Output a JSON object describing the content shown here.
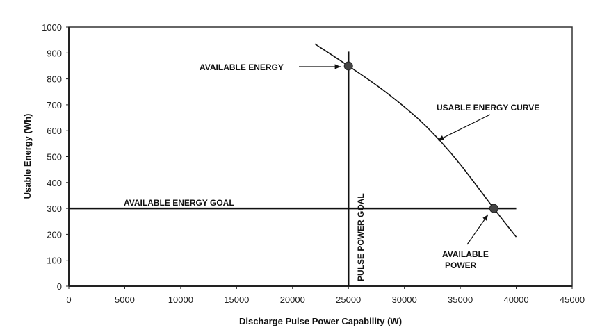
{
  "chart_data": {
    "type": "line",
    "title": "",
    "xlabel": "Discharge Pulse Power Capability (W)",
    "ylabel": "Usable Energy (Wh)",
    "xlim": [
      0,
      45000
    ],
    "ylim": [
      0,
      1000
    ],
    "x_ticks": [
      "0",
      "5000",
      "10000",
      "15000",
      "20000",
      "25000",
      "30000",
      "35000",
      "40000",
      "45000"
    ],
    "y_ticks": [
      "0",
      "100",
      "200",
      "300",
      "400",
      "500",
      "600",
      "700",
      "800",
      "900",
      "1000"
    ],
    "grid": false,
    "series": [
      {
        "x": [
          22000,
          25000,
          28000,
          31000,
          33000,
          35000,
          38000,
          40000
        ],
        "y": [
          935,
          850,
          760,
          655,
          570,
          470,
          300,
          190
        ],
        "color": "#111111"
      }
    ],
    "goal_lines": {
      "energy_goal": {
        "y": 300,
        "x_end": 40000,
        "label": "AVAILABLE ENERGY GOAL"
      },
      "power_goal": {
        "x": 25000,
        "y_end": 905,
        "label": "PULSE POWER GOAL"
      }
    },
    "points": [
      {
        "x": 25000,
        "y": 850,
        "label": "AVAILABLE ENERGY"
      },
      {
        "x": 38000,
        "y": 300,
        "label_lines": [
          "AVAILABLE",
          "POWER"
        ]
      }
    ],
    "annotations": {
      "curve_label": "USABLE ENERGY CURVE"
    },
    "point_color": "#444444"
  }
}
